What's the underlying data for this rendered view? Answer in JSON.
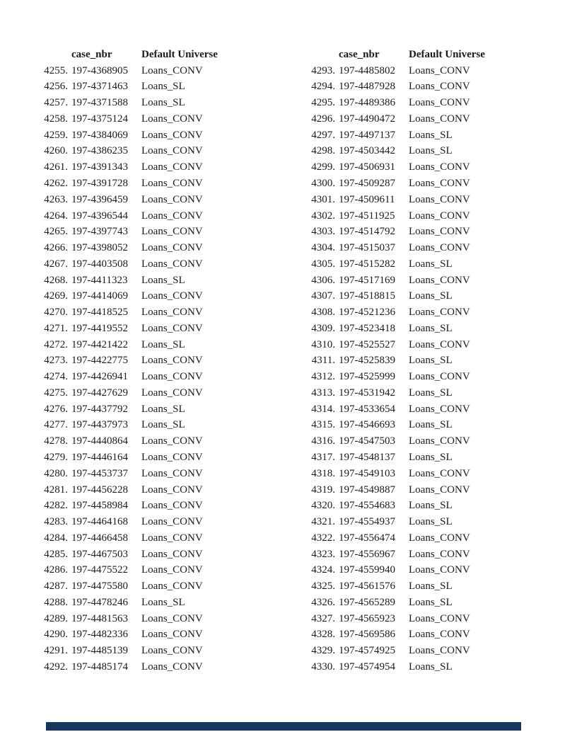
{
  "text_color": "#1a1a1a",
  "footer_bar_color": "#17365d",
  "columns": [
    {
      "header": {
        "idx": "",
        "case": "case_nbr",
        "universe": "Default Universe"
      },
      "rows": [
        {
          "idx": "4255.",
          "case": "197-4368905",
          "universe": "Loans_CONV"
        },
        {
          "idx": "4256.",
          "case": "197-4371463",
          "universe": "Loans_SL"
        },
        {
          "idx": "4257.",
          "case": "197-4371588",
          "universe": "Loans_SL"
        },
        {
          "idx": "4258.",
          "case": "197-4375124",
          "universe": "Loans_CONV"
        },
        {
          "idx": "4259.",
          "case": "197-4384069",
          "universe": "Loans_CONV"
        },
        {
          "idx": "4260.",
          "case": "197-4386235",
          "universe": "Loans_CONV"
        },
        {
          "idx": "4261.",
          "case": "197-4391343",
          "universe": "Loans_CONV"
        },
        {
          "idx": "4262.",
          "case": "197-4391728",
          "universe": "Loans_CONV"
        },
        {
          "idx": "4263.",
          "case": "197-4396459",
          "universe": "Loans_CONV"
        },
        {
          "idx": "4264.",
          "case": "197-4396544",
          "universe": "Loans_CONV"
        },
        {
          "idx": "4265.",
          "case": "197-4397743",
          "universe": "Loans_CONV"
        },
        {
          "idx": "4266.",
          "case": "197-4398052",
          "universe": "Loans_CONV"
        },
        {
          "idx": "4267.",
          "case": "197-4403508",
          "universe": "Loans_CONV"
        },
        {
          "idx": "4268.",
          "case": "197-4411323",
          "universe": "Loans_SL"
        },
        {
          "idx": "4269.",
          "case": "197-4414069",
          "universe": "Loans_CONV"
        },
        {
          "idx": "4270.",
          "case": "197-4418525",
          "universe": "Loans_CONV"
        },
        {
          "idx": "4271.",
          "case": "197-4419552",
          "universe": "Loans_CONV"
        },
        {
          "idx": "4272.",
          "case": "197-4421422",
          "universe": "Loans_SL"
        },
        {
          "idx": "4273.",
          "case": "197-4422775",
          "universe": "Loans_CONV"
        },
        {
          "idx": "4274.",
          "case": "197-4426941",
          "universe": "Loans_CONV"
        },
        {
          "idx": "4275.",
          "case": "197-4427629",
          "universe": "Loans_CONV"
        },
        {
          "idx": "4276.",
          "case": "197-4437792",
          "universe": "Loans_SL"
        },
        {
          "idx": "4277.",
          "case": "197-4437973",
          "universe": "Loans_SL"
        },
        {
          "idx": "4278.",
          "case": "197-4440864",
          "universe": "Loans_CONV"
        },
        {
          "idx": "4279.",
          "case": "197-4446164",
          "universe": "Loans_CONV"
        },
        {
          "idx": "4280.",
          "case": "197-4453737",
          "universe": "Loans_CONV"
        },
        {
          "idx": "4281.",
          "case": "197-4456228",
          "universe": "Loans_CONV"
        },
        {
          "idx": "4282.",
          "case": "197-4458984",
          "universe": "Loans_CONV"
        },
        {
          "idx": "4283.",
          "case": "197-4464168",
          "universe": "Loans_CONV"
        },
        {
          "idx": "4284.",
          "case": "197-4466458",
          "universe": "Loans_CONV"
        },
        {
          "idx": "4285.",
          "case": "197-4467503",
          "universe": "Loans_CONV"
        },
        {
          "idx": "4286.",
          "case": "197-4475522",
          "universe": "Loans_CONV"
        },
        {
          "idx": "4287.",
          "case": "197-4475580",
          "universe": "Loans_CONV"
        },
        {
          "idx": "4288.",
          "case": "197-4478246",
          "universe": "Loans_SL"
        },
        {
          "idx": "4289.",
          "case": "197-4481563",
          "universe": "Loans_CONV"
        },
        {
          "idx": "4290.",
          "case": "197-4482336",
          "universe": "Loans_CONV"
        },
        {
          "idx": "4291.",
          "case": "197-4485139",
          "universe": "Loans_CONV"
        },
        {
          "idx": "4292.",
          "case": "197-4485174",
          "universe": "Loans_CONV"
        }
      ]
    },
    {
      "header": {
        "idx": "",
        "case": "case_nbr",
        "universe": "Default Universe"
      },
      "rows": [
        {
          "idx": "4293.",
          "case": "197-4485802",
          "universe": "Loans_CONV"
        },
        {
          "idx": "4294.",
          "case": "197-4487928",
          "universe": "Loans_CONV"
        },
        {
          "idx": "4295.",
          "case": "197-4489386",
          "universe": "Loans_CONV"
        },
        {
          "idx": "4296.",
          "case": "197-4490472",
          "universe": "Loans_CONV"
        },
        {
          "idx": "4297.",
          "case": "197-4497137",
          "universe": "Loans_SL"
        },
        {
          "idx": "4298.",
          "case": "197-4503442",
          "universe": "Loans_SL"
        },
        {
          "idx": "4299.",
          "case": "197-4506931",
          "universe": "Loans_CONV"
        },
        {
          "idx": "4300.",
          "case": "197-4509287",
          "universe": "Loans_CONV"
        },
        {
          "idx": "4301.",
          "case": "197-4509611",
          "universe": "Loans_CONV"
        },
        {
          "idx": "4302.",
          "case": "197-4511925",
          "universe": "Loans_CONV"
        },
        {
          "idx": "4303.",
          "case": "197-4514792",
          "universe": "Loans_CONV"
        },
        {
          "idx": "4304.",
          "case": "197-4515037",
          "universe": "Loans_CONV"
        },
        {
          "idx": "4305.",
          "case": "197-4515282",
          "universe": "Loans_SL"
        },
        {
          "idx": "4306.",
          "case": "197-4517169",
          "universe": "Loans_CONV"
        },
        {
          "idx": "4307.",
          "case": "197-4518815",
          "universe": "Loans_SL"
        },
        {
          "idx": "4308.",
          "case": "197-4521236",
          "universe": "Loans_CONV"
        },
        {
          "idx": "4309.",
          "case": "197-4523418",
          "universe": "Loans_SL"
        },
        {
          "idx": "4310.",
          "case": "197-4525527",
          "universe": "Loans_CONV"
        },
        {
          "idx": "4311.",
          "case": "197-4525839",
          "universe": "Loans_SL"
        },
        {
          "idx": "4312.",
          "case": "197-4525999",
          "universe": "Loans_CONV"
        },
        {
          "idx": "4313.",
          "case": "197-4531942",
          "universe": "Loans_SL"
        },
        {
          "idx": "4314.",
          "case": "197-4533654",
          "universe": "Loans_CONV"
        },
        {
          "idx": "4315.",
          "case": "197-4546693",
          "universe": "Loans_SL"
        },
        {
          "idx": "4316.",
          "case": "197-4547503",
          "universe": "Loans_CONV"
        },
        {
          "idx": "4317.",
          "case": "197-4548137",
          "universe": "Loans_SL"
        },
        {
          "idx": "4318.",
          "case": "197-4549103",
          "universe": "Loans_CONV"
        },
        {
          "idx": "4319.",
          "case": "197-4549887",
          "universe": "Loans_CONV"
        },
        {
          "idx": "4320.",
          "case": "197-4554683",
          "universe": "Loans_SL"
        },
        {
          "idx": "4321.",
          "case": "197-4554937",
          "universe": "Loans_SL"
        },
        {
          "idx": "4322.",
          "case": "197-4556474",
          "universe": "Loans_CONV"
        },
        {
          "idx": "4323.",
          "case": "197-4556967",
          "universe": "Loans_CONV"
        },
        {
          "idx": "4324.",
          "case": "197-4559940",
          "universe": "Loans_CONV"
        },
        {
          "idx": "4325.",
          "case": "197-4561576",
          "universe": "Loans_SL"
        },
        {
          "idx": "4326.",
          "case": "197-4565289",
          "universe": "Loans_SL"
        },
        {
          "idx": "4327.",
          "case": "197-4565923",
          "universe": "Loans_CONV"
        },
        {
          "idx": "4328.",
          "case": "197-4569586",
          "universe": "Loans_CONV"
        },
        {
          "idx": "4329.",
          "case": "197-4574925",
          "universe": "Loans_CONV"
        },
        {
          "idx": "4330.",
          "case": "197-4574954",
          "universe": "Loans_SL"
        }
      ]
    }
  ]
}
